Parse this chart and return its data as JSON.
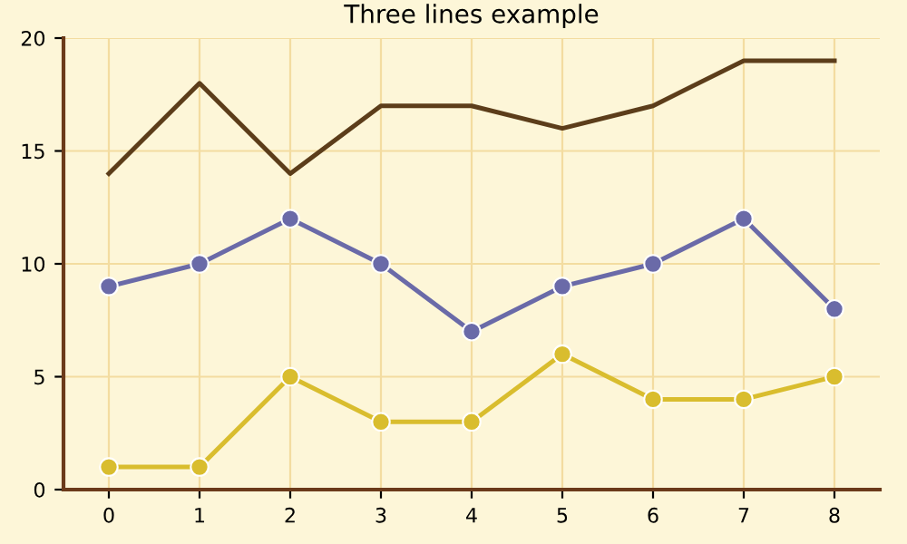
{
  "chart_data": {
    "type": "line",
    "title": "Three lines example",
    "x": [
      0,
      1,
      2,
      3,
      4,
      5,
      6,
      7,
      8
    ],
    "xlim": [
      -0.5,
      8.5
    ],
    "xticks": [
      0,
      1,
      2,
      3,
      4,
      5,
      6,
      7,
      8
    ],
    "ylim": [
      0,
      20
    ],
    "yticks": [
      0,
      5,
      10,
      15,
      20
    ],
    "grid": true,
    "series": [
      {
        "color": "#5c3d1a",
        "marker": "none",
        "values": [
          14,
          18,
          14,
          17,
          17,
          16,
          17,
          19,
          19
        ]
      },
      {
        "color": "#6a6aa8",
        "marker": "circle",
        "values": [
          9,
          10,
          12,
          10,
          7,
          9,
          10,
          12,
          8
        ]
      },
      {
        "color": "#d9bd2e",
        "marker": "circle",
        "values": [
          1,
          1,
          5,
          3,
          3,
          6,
          4,
          4,
          5
        ]
      }
    ]
  }
}
